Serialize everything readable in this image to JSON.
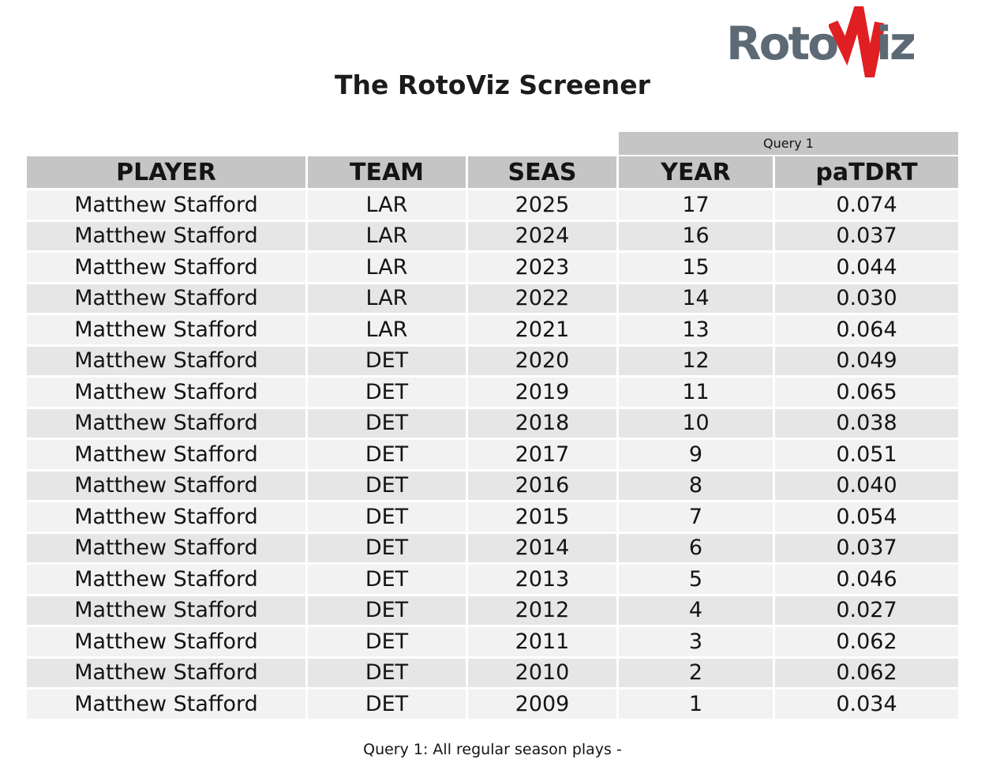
{
  "logo": {
    "text_left": "Roto",
    "text_right": "iz",
    "v_icon": "red-zigzag-v"
  },
  "title": "The RotoViz Screener",
  "table": {
    "group_header": "Query 1",
    "columns": [
      "PLAYER",
      "TEAM",
      "SEAS",
      "YEAR",
      "paTDRT"
    ],
    "rows": [
      [
        "Matthew Stafford",
        "LAR",
        "2025",
        "17",
        "0.074"
      ],
      [
        "Matthew Stafford",
        "LAR",
        "2024",
        "16",
        "0.037"
      ],
      [
        "Matthew Stafford",
        "LAR",
        "2023",
        "15",
        "0.044"
      ],
      [
        "Matthew Stafford",
        "LAR",
        "2022",
        "14",
        "0.030"
      ],
      [
        "Matthew Stafford",
        "LAR",
        "2021",
        "13",
        "0.064"
      ],
      [
        "Matthew Stafford",
        "DET",
        "2020",
        "12",
        "0.049"
      ],
      [
        "Matthew Stafford",
        "DET",
        "2019",
        "11",
        "0.065"
      ],
      [
        "Matthew Stafford",
        "DET",
        "2018",
        "10",
        "0.038"
      ],
      [
        "Matthew Stafford",
        "DET",
        "2017",
        "9",
        "0.051"
      ],
      [
        "Matthew Stafford",
        "DET",
        "2016",
        "8",
        "0.040"
      ],
      [
        "Matthew Stafford",
        "DET",
        "2015",
        "7",
        "0.054"
      ],
      [
        "Matthew Stafford",
        "DET",
        "2014",
        "6",
        "0.037"
      ],
      [
        "Matthew Stafford",
        "DET",
        "2013",
        "5",
        "0.046"
      ],
      [
        "Matthew Stafford",
        "DET",
        "2012",
        "4",
        "0.027"
      ],
      [
        "Matthew Stafford",
        "DET",
        "2011",
        "3",
        "0.062"
      ],
      [
        "Matthew Stafford",
        "DET",
        "2010",
        "2",
        "0.062"
      ],
      [
        "Matthew Stafford",
        "DET",
        "2009",
        "1",
        "0.034"
      ]
    ]
  },
  "footer": "Query 1: All regular season plays -",
  "colors": {
    "header_bg": "#c5c5c5",
    "row_odd": "#f2f2f2",
    "row_even": "#e6e6e6",
    "logo_gray": "#5d6a76",
    "logo_red": "#e01f23",
    "text": "#141414"
  }
}
